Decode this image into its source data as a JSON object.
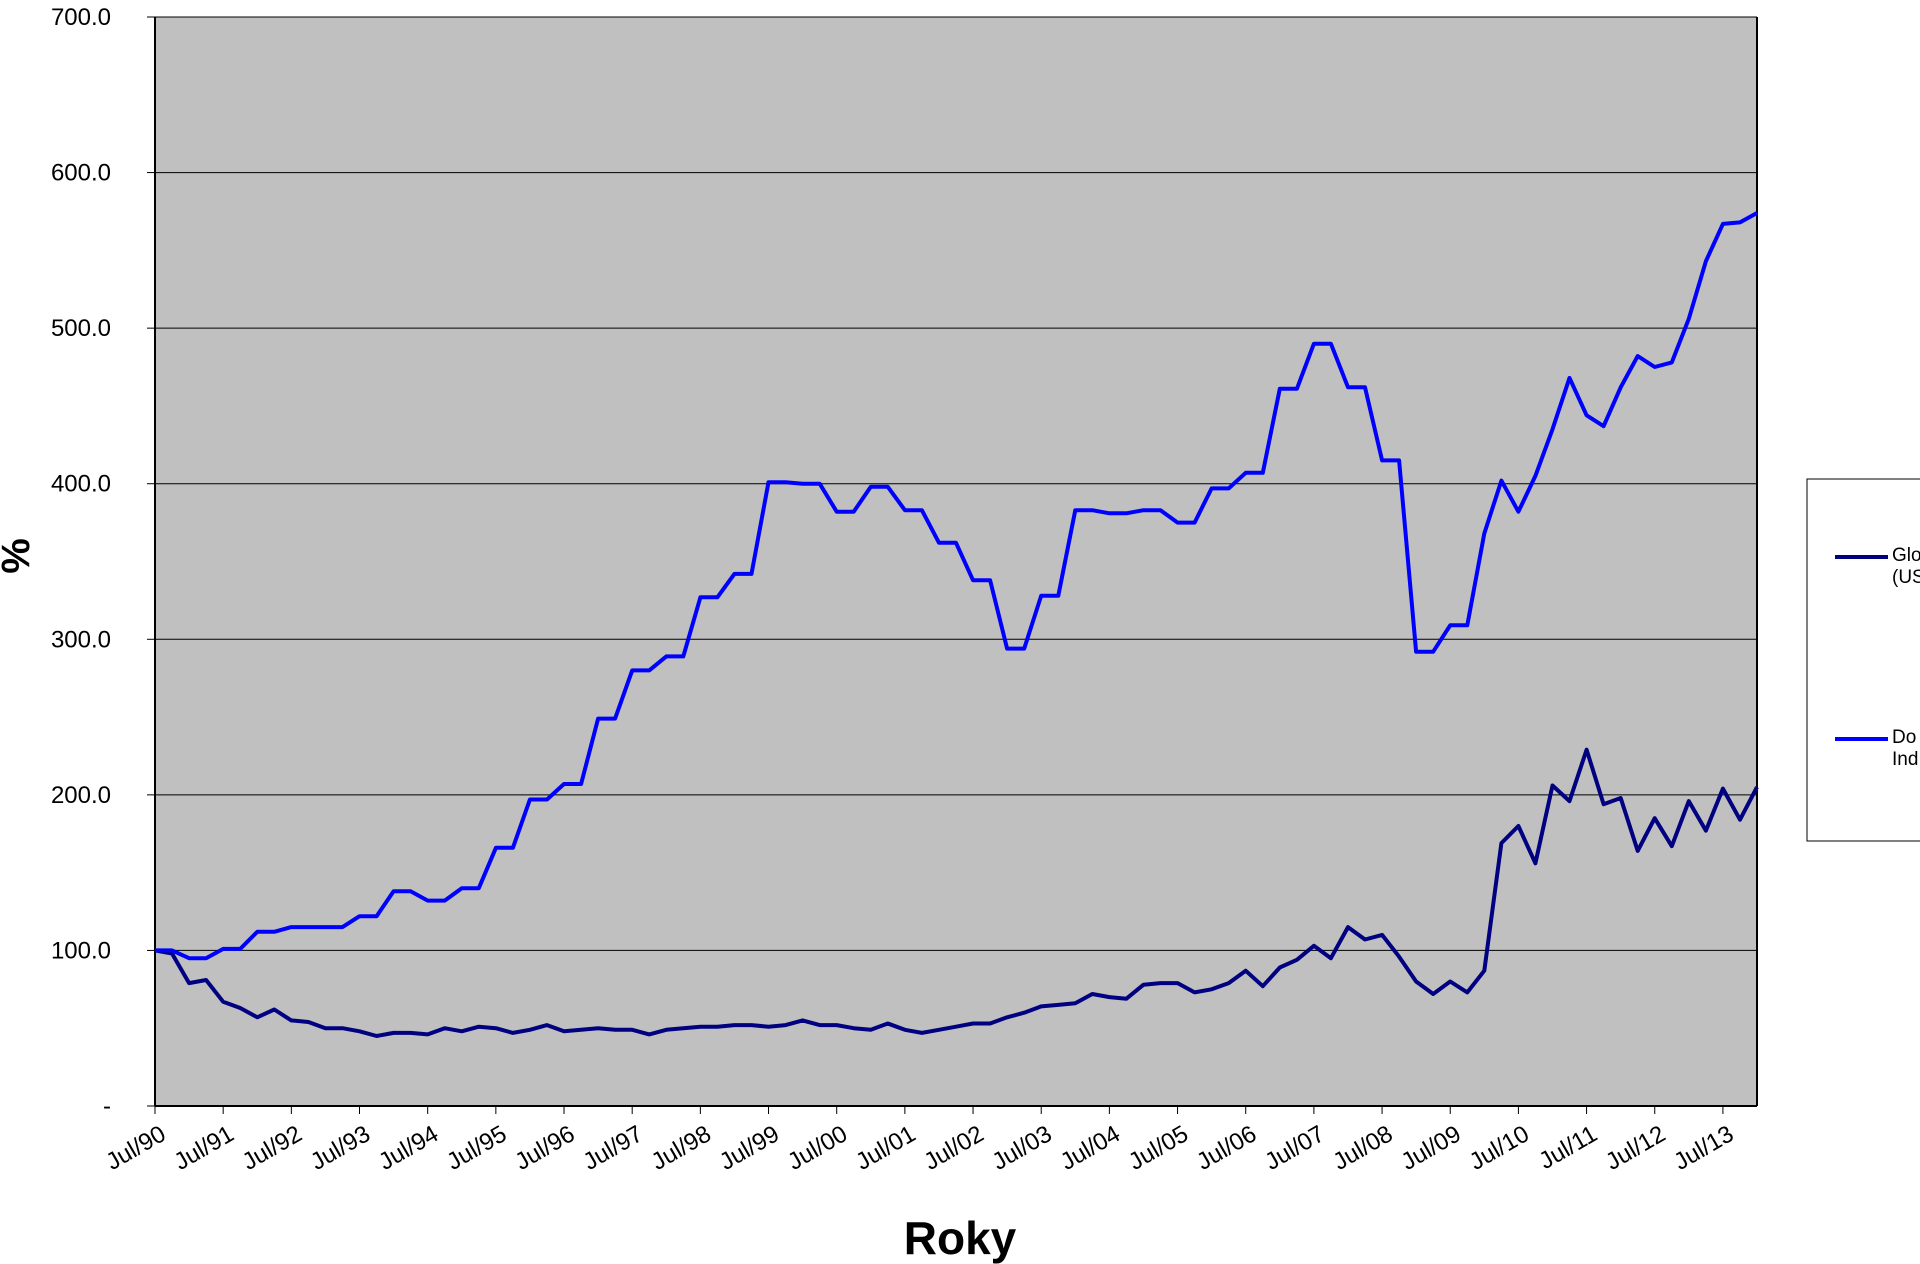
{
  "chart_data": {
    "type": "line",
    "x_label": "Roky",
    "y_label": "%",
    "categories": [
      "Jul/90",
      null,
      null,
      null,
      "Jul/91",
      null,
      null,
      null,
      "Jul/92",
      null,
      null,
      null,
      "Jul/93",
      null,
      null,
      null,
      "Jul/94",
      null,
      null,
      null,
      "Jul/95",
      null,
      null,
      null,
      "Jul/96",
      null,
      null,
      null,
      "Jul/97",
      null,
      null,
      null,
      "Jul/98",
      null,
      null,
      null,
      "Jul/99",
      null,
      null,
      null,
      "Jul/00",
      null,
      null,
      null,
      "Jul/01",
      null,
      null,
      null,
      "Jul/02",
      null,
      null,
      null,
      "Jul/03",
      null,
      null,
      null,
      "Jul/04",
      null,
      null,
      null,
      "Jul/05",
      null,
      null,
      null,
      "Jul/06",
      null,
      null,
      null,
      "Jul/07",
      null,
      null,
      null,
      "Jul/08",
      null,
      null,
      null,
      "Jul/09",
      null,
      null,
      null,
      "Jul/10",
      null,
      null,
      null,
      "Jul/11",
      null,
      null,
      null,
      "Jul/12",
      null,
      null,
      null,
      "Jul/13",
      null,
      null
    ],
    "series": [
      {
        "name": "Glo (US",
        "color": "#000080",
        "values": [
          100,
          98,
          79,
          81,
          67,
          63,
          57,
          62,
          55,
          54,
          50,
          50,
          48,
          45,
          47,
          47,
          46,
          50,
          48,
          51,
          50,
          47,
          49,
          52,
          48,
          49,
          50,
          49,
          49,
          46,
          49,
          50,
          51,
          51,
          52,
          52,
          51,
          52,
          55,
          52,
          52,
          50,
          49,
          53,
          49,
          47,
          49,
          51,
          53,
          53,
          57,
          60,
          64,
          65,
          66,
          72,
          70,
          69,
          78,
          79,
          79,
          73,
          75,
          79,
          87,
          77,
          89,
          94,
          103,
          95,
          115,
          107,
          110,
          96,
          80,
          72,
          80,
          73,
          87,
          169,
          180,
          156,
          206,
          196,
          229,
          194,
          198,
          164,
          185,
          167,
          196,
          177,
          204,
          184,
          205
        ]
      },
      {
        "name": "Do Ind",
        "color": "#0000ff",
        "values": [
          100,
          100,
          95,
          95,
          101,
          101,
          112,
          112,
          115,
          115,
          115,
          115,
          122,
          122,
          138,
          138,
          132,
          132,
          140,
          140,
          166,
          166,
          197,
          197,
          207,
          207,
          249,
          249,
          280,
          280,
          289,
          289,
          327,
          327,
          342,
          342,
          401,
          401,
          400,
          400,
          382,
          382,
          398,
          398,
          383,
          383,
          362,
          362,
          338,
          338,
          294,
          294,
          328,
          328,
          383,
          383,
          381,
          381,
          383,
          383,
          375,
          375,
          397,
          397,
          407,
          407,
          461,
          461,
          490,
          490,
          462,
          462,
          415,
          415,
          292,
          292,
          309,
          309,
          368,
          402,
          382,
          405,
          435,
          468,
          444,
          437,
          462,
          482,
          475,
          478,
          506,
          543,
          567,
          568,
          574
        ]
      }
    ],
    "ylim": [
      0,
      700
    ],
    "yticks": [
      {
        "value": 0,
        "label": "-"
      },
      {
        "value": 100,
        "label": "100.0"
      },
      {
        "value": 200,
        "label": "200.0"
      },
      {
        "value": 300,
        "label": "300.0"
      },
      {
        "value": 400,
        "label": "400.0"
      },
      {
        "value": 500,
        "label": "500.0"
      },
      {
        "value": 600,
        "label": "600.0"
      },
      {
        "value": 700,
        "label": "700.0"
      }
    ],
    "grid": true,
    "legend": "right",
    "background": "#c0c0c0"
  }
}
